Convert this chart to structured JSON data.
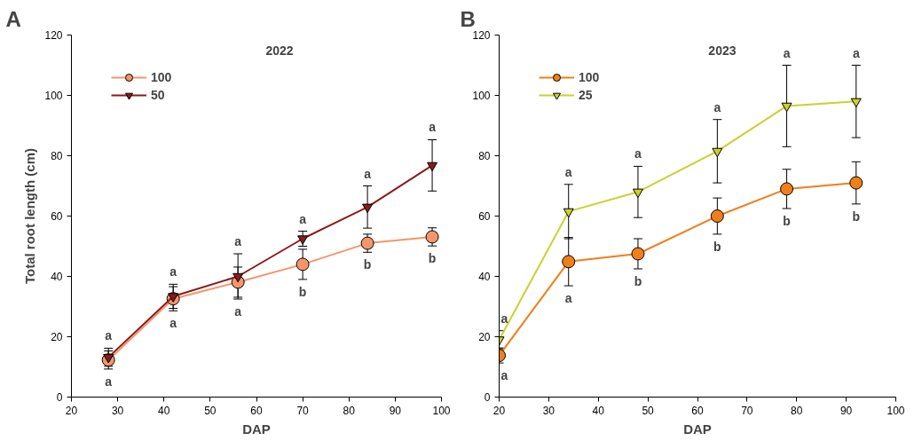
{
  "chart_data": [
    {
      "type": "line",
      "title": "2022",
      "xlabel": "DAP",
      "ylabel": "Total root length (cm)",
      "x": [
        28,
        42,
        56,
        70,
        84,
        98
      ],
      "xlim": [
        20,
        100
      ],
      "xticks": [
        20,
        30,
        40,
        50,
        60,
        70,
        80,
        90,
        100
      ],
      "ylim": [
        0,
        120
      ],
      "yticks": [
        0,
        20,
        40,
        60,
        80,
        100,
        120
      ],
      "grid": false,
      "legend": "top left",
      "series": [
        {
          "name": "100",
          "color": "#f4956b",
          "marker": "circle",
          "values": [
            12.3,
            32.6,
            38.1,
            44,
            51,
            53.1
          ],
          "errors": [
            3,
            4,
            5,
            5,
            3,
            3
          ]
        },
        {
          "name": "50",
          "color": "#8b1a1a",
          "marker": "triangle",
          "values": [
            13.2,
            33.4,
            40,
            52.5,
            63,
            76.8
          ],
          "errors": [
            3,
            4,
            7.5,
            2.5,
            7,
            8.5
          ]
        }
      ],
      "annotations": [
        "A",
        "a",
        "a",
        "a",
        "a",
        "a",
        "a",
        "a",
        "a",
        "a",
        "b",
        "b",
        "b"
      ]
    },
    {
      "type": "line",
      "title": "2023",
      "xlabel": "DAP",
      "x": [
        20,
        34,
        48,
        64,
        78,
        92
      ],
      "xlim": [
        20,
        100
      ],
      "xticks": [
        20,
        30,
        40,
        50,
        60,
        70,
        80,
        90,
        100
      ],
      "ylim": [
        0,
        120
      ],
      "yticks": [
        0,
        20,
        40,
        60,
        80,
        100,
        120
      ],
      "grid": false,
      "legend": "top left",
      "series": [
        {
          "name": "100",
          "color": "#f07f1a",
          "marker": "circle",
          "values": [
            13.8,
            44.9,
            47.5,
            60,
            69,
            71
          ],
          "errors": [
            2.5,
            8,
            5,
            6,
            6.5,
            7
          ]
        },
        {
          "name": "25",
          "color": "#c8d230",
          "marker": "triangle",
          "values": [
            19,
            61.5,
            68,
            81.5,
            96.5,
            98
          ],
          "errors": [
            3,
            9,
            8.5,
            10.5,
            13.5,
            12
          ]
        }
      ],
      "annotations": [
        "B",
        "a",
        "a",
        "a",
        "a",
        "a",
        "a",
        "a",
        "a",
        "b",
        "b",
        "b",
        "b"
      ]
    }
  ]
}
